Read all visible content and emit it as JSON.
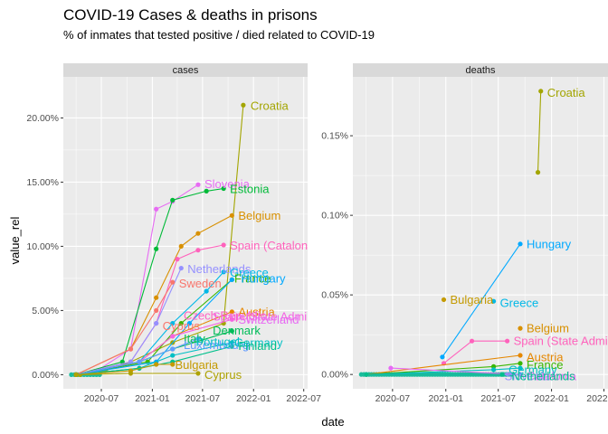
{
  "chart_data": {
    "type": "line",
    "title": "COVID-19 Cases & deaths in prisons",
    "subtitle": "% of inmates that tested positive / died related to COVID-19",
    "xlabel": "date",
    "ylabel": "value_rel",
    "x_ticks": [
      "2020-07",
      "2021-01",
      "2021-07",
      "2022-01",
      "2022-07"
    ],
    "x_range": [
      "2020-02-15",
      "2022-07-15"
    ],
    "grid": true,
    "legend": "none",
    "panels": [
      {
        "strip": "cases",
        "ylim": [
          -0.011,
          0.232
        ],
        "y_ticks": [
          0.0,
          0.05,
          0.1,
          0.15,
          0.2
        ],
        "y_tick_labels": [
          "0.00%",
          "5.00%",
          "10.00%",
          "15.00%",
          "20.00%"
        ],
        "series": [
          {
            "name": "Croatia",
            "color": "#A3A500",
            "points": [
              [
                "2020-04-15",
                0.0
              ],
              [
                "2020-07-15",
                0.003
              ],
              [
                "2020-10-15",
                0.01
              ],
              [
                "2021-03-15",
                0.025
              ],
              [
                "2021-09-15",
                0.04
              ],
              [
                "2021-11-25",
                0.21
              ]
            ]
          },
          {
            "name": "Slovenia",
            "color": "#E76BF3",
            "points": [
              [
                "2020-04-01",
                0.0
              ],
              [
                "2020-06-15",
                0.003
              ],
              [
                "2020-10-15",
                0.02
              ],
              [
                "2021-01-15",
                0.129
              ],
              [
                "2021-03-15",
                0.135
              ],
              [
                "2021-06-15",
                0.148
              ]
            ]
          },
          {
            "name": "Estonia",
            "color": "#00BA38",
            "points": [
              [
                "2020-04-01",
                0.0
              ],
              [
                "2020-09-15",
                0.01
              ],
              [
                "2021-01-15",
                0.098
              ],
              [
                "2021-03-15",
                0.136
              ],
              [
                "2021-07-15",
                0.143
              ],
              [
                "2021-09-15",
                0.145
              ]
            ]
          },
          {
            "name": "Belgium",
            "color": "#D89000",
            "points": [
              [
                "2020-04-01",
                0.0
              ],
              [
                "2020-10-15",
                0.02
              ],
              [
                "2021-01-15",
                0.06
              ],
              [
                "2021-04-15",
                0.1
              ],
              [
                "2021-06-15",
                0.11
              ],
              [
                "2021-10-15",
                0.124
              ]
            ]
          },
          {
            "name": "Spain (Catalonia)",
            "color": "#FF62BC",
            "points": [
              [
                "2020-04-01",
                0.0
              ],
              [
                "2020-10-15",
                0.01
              ],
              [
                "2021-01-15",
                0.04
              ],
              [
                "2021-04-01",
                0.09
              ],
              [
                "2021-06-15",
                0.097
              ],
              [
                "2021-09-15",
                0.101
              ]
            ]
          },
          {
            "name": "Netherlands",
            "color": "#9590FF",
            "points": [
              [
                "2020-04-01",
                0.0
              ],
              [
                "2020-10-15",
                0.01
              ],
              [
                "2021-01-15",
                0.04
              ],
              [
                "2021-04-15",
                0.083
              ]
            ]
          },
          {
            "name": "Greece",
            "color": "#00B8E7",
            "points": [
              [
                "2020-04-01",
                0.0
              ],
              [
                "2020-11-15",
                0.01
              ],
              [
                "2021-03-15",
                0.04
              ],
              [
                "2021-07-15",
                0.065
              ],
              [
                "2021-09-15",
                0.08
              ]
            ]
          },
          {
            "name": "France",
            "color": "#39B600",
            "points": [
              [
                "2020-04-01",
                0.0
              ],
              [
                "2020-12-15",
                0.01
              ],
              [
                "2021-04-15",
                0.04
              ],
              [
                "2021-10-15",
                0.074
              ]
            ]
          },
          {
            "name": "Hungary",
            "color": "#00A9FF",
            "points": [
              [
                "2020-04-01",
                0.0
              ],
              [
                "2021-01-15",
                0.01
              ],
              [
                "2021-05-15",
                0.04
              ],
              [
                "2021-10-15",
                0.074
              ]
            ]
          },
          {
            "name": "Sweden",
            "color": "#F8766D",
            "points": [
              [
                "2020-04-01",
                0.0
              ],
              [
                "2020-10-15",
                0.02
              ],
              [
                "2021-01-15",
                0.05
              ],
              [
                "2021-03-15",
                0.072
              ]
            ]
          },
          {
            "name": "Austria",
            "color": "#E58700",
            "points": [
              [
                "2020-04-01",
                0.0
              ],
              [
                "2020-11-15",
                0.01
              ],
              [
                "2021-03-15",
                0.03
              ],
              [
                "2021-10-15",
                0.049
              ]
            ]
          },
          {
            "name": "Switzerland",
            "color": "#F564E3",
            "points": [
              [
                "2020-04-01",
                0.0
              ],
              [
                "2020-11-15",
                0.01
              ],
              [
                "2021-03-15",
                0.03
              ],
              [
                "2021-10-15",
                0.043
              ]
            ]
          },
          {
            "name": "Denmark",
            "color": "#00BC59",
            "points": [
              [
                "2020-04-01",
                0.0
              ],
              [
                "2020-11-15",
                0.01
              ],
              [
                "2021-03-15",
                0.02
              ],
              [
                "2021-10-15",
                0.034
              ]
            ]
          },
          {
            "name": "Luxembourg",
            "color": "#619CFF",
            "points": [
              [
                "2020-04-01",
                0.0
              ],
              [
                "2020-11-15",
                0.01
              ],
              [
                "2021-03-15",
                0.02
              ],
              [
                "2021-06-15",
                0.028
              ]
            ]
          },
          {
            "name": "Germany",
            "color": "#00BFC4",
            "points": [
              [
                "2020-04-01",
                0.0
              ],
              [
                "2020-11-15",
                0.005
              ],
              [
                "2021-03-15",
                0.015
              ],
              [
                "2021-10-15",
                0.025
              ]
            ]
          },
          {
            "name": "Finland",
            "color": "#00C08B",
            "points": [
              [
                "2020-04-01",
                0.0
              ],
              [
                "2020-11-15",
                0.005
              ],
              [
                "2021-03-15",
                0.01
              ],
              [
                "2021-10-15",
                0.022
              ]
            ]
          },
          {
            "name": "Bulgaria",
            "color": "#C49A00",
            "points": [
              [
                "2020-04-01",
                0.0
              ],
              [
                "2020-10-15",
                0.003
              ],
              [
                "2021-01-15",
                0.008
              ],
              [
                "2021-03-15",
                0.008
              ]
            ]
          },
          {
            "name": "Cyprus",
            "color": "#AEA200",
            "points": [
              [
                "2020-04-01",
                0.0
              ],
              [
                "2020-10-15",
                0.001
              ],
              [
                "2021-06-15",
                0.001
              ]
            ]
          }
        ]
      },
      {
        "strip": "deaths",
        "ylim": [
          -9e-05,
          0.00187
        ],
        "y_ticks": [
          0.0,
          0.0005,
          0.001,
          0.0015
        ],
        "y_tick_labels": [
          "0.00%",
          "0.05%",
          "0.10%",
          "0.15%"
        ],
        "series": [
          {
            "name": "Croatia",
            "color": "#A3A500",
            "points": [
              [
                "2021-11-15",
                0.00127
              ],
              [
                "2021-11-25",
                0.00178
              ]
            ]
          },
          {
            "name": "Hungary",
            "color": "#00A9FF",
            "points": [
              [
                "2020-12-20",
                0.00011
              ],
              [
                "2021-09-15",
                0.00082
              ]
            ]
          },
          {
            "name": "Bulgaria",
            "color": "#C49A00",
            "points": [
              [
                "2020-12-25",
                0.00047
              ]
            ]
          },
          {
            "name": "Greece",
            "color": "#00B8E7",
            "points": [
              [
                "2021-06-15",
                0.00046
              ]
            ]
          },
          {
            "name": "Belgium",
            "color": "#D89000",
            "points": [
              [
                "2021-09-15",
                0.00029
              ]
            ]
          },
          {
            "name": "Spain (State Admin.)",
            "color": "#FF62BC",
            "points": [
              [
                "2020-12-25",
                7e-05
              ],
              [
                "2021-04-01",
                0.00021
              ],
              [
                "2021-08-01",
                0.00021
              ]
            ]
          },
          {
            "name": "Austria",
            "color": "#E58700",
            "points": [
              [
                "2020-04-01",
                0.0
              ],
              [
                "2021-09-15",
                0.00012
              ]
            ]
          },
          {
            "name": "France",
            "color": "#39B600",
            "points": [
              [
                "2020-04-01",
                0.0
              ],
              [
                "2021-06-15",
                5e-05
              ],
              [
                "2021-09-15",
                7e-05
              ]
            ]
          },
          {
            "name": "Germany",
            "color": "#00BFC4",
            "points": [
              [
                "2020-04-01",
                0.0
              ],
              [
                "2021-06-15",
                3e-05
              ],
              [
                "2021-09-15",
                4e-05
              ]
            ]
          },
          {
            "name": "Catalonia",
            "color": "#E76BF3",
            "points": [
              [
                "2020-06-25",
                4e-05
              ],
              [
                "2021-09-15",
                0.0
              ]
            ]
          },
          {
            "name": "Slovenia",
            "color": "#9590FF",
            "points": [
              [
                "2020-04-01",
                0.0
              ],
              [
                "2021-09-15",
                0.0
              ]
            ]
          },
          {
            "name": "Netherlands",
            "color": "#00C08B",
            "points": [
              [
                "2020-04-01",
                0.0
              ],
              [
                "2021-07-15",
                0.0
              ]
            ]
          }
        ]
      }
    ],
    "labels": {
      "cases": [
        {
          "text": "Croatia",
          "color": "#A3A500",
          "x": "2021-11-28",
          "y": 0.2095
        },
        {
          "text": "Slovenia",
          "color": "#E76BF3",
          "x": "2021-06-15",
          "y": 0.1485
        },
        {
          "text": "Estonia",
          "color": "#00BA38",
          "x": "2021-09-15",
          "y": 0.1445
        },
        {
          "text": "Belgium",
          "color": "#D89000",
          "x": "2021-10-15",
          "y": 0.1238
        },
        {
          "text": "Spain (Catalonia)",
          "color": "#FF62BC",
          "x": "2021-09-15",
          "y": 0.1005
        },
        {
          "text": "Netherlands",
          "color": "#9590FF",
          "x": "2021-04-15",
          "y": 0.0825
        },
        {
          "text": "Greece",
          "color": "#00B8E7",
          "x": "2021-09-15",
          "y": 0.0795
        },
        {
          "text": "France",
          "color": "#39B600",
          "x": "2021-10-01",
          "y": 0.075
        },
        {
          "text": "Hungary",
          "color": "#00A9FF",
          "x": "2021-10-25",
          "y": 0.0748
        },
        {
          "text": "Sweden",
          "color": "#F8766D",
          "x": "2021-03-15",
          "y": 0.0712
        },
        {
          "text": "Austria",
          "color": "#E58700",
          "x": "2021-10-15",
          "y": 0.049
        },
        {
          "text": "Czech Republic",
          "color": "#FF61C3",
          "x": "2021-04-01",
          "y": 0.046
        },
        {
          "text": "Spain (State Admin.)",
          "color": "#F564E3",
          "x": "2021-07-15",
          "y": 0.0455
        },
        {
          "text": "Switzerland",
          "color": "#E76BF3",
          "x": "2021-10-15",
          "y": 0.043
        },
        {
          "text": "Cyprus",
          "color": "#F8766D",
          "x": "2021-01-15",
          "y": 0.038
        },
        {
          "text": "Denmark",
          "color": "#00BC59",
          "x": "2021-07-15",
          "y": 0.0345
        },
        {
          "text": "Italy",
          "color": "#00BD5C",
          "x": "2021-04-01",
          "y": 0.028
        },
        {
          "text": "Luxembourg",
          "color": "#619CFF",
          "x": "2021-04-01",
          "y": 0.023
        },
        {
          "text": "Portugal",
          "color": "#00BFC4",
          "x": "2021-05-15",
          "y": 0.0255
        },
        {
          "text": "Germany",
          "color": "#00BFC4",
          "x": "2021-10-01",
          "y": 0.025
        },
        {
          "text": "Finland",
          "color": "#00C08B",
          "x": "2021-10-15",
          "y": 0.0225
        },
        {
          "text": "Bulgaria",
          "color": "#C49A00",
          "x": "2021-03-01",
          "y": 0.0075
        },
        {
          "text": "Cyprus",
          "color": "#AEA200",
          "x": "2021-06-15",
          "y": 0.0
        }
      ],
      "deaths": [
        {
          "text": "Croatia",
          "color": "#A3A500",
          "x": "2021-11-25",
          "y": 0.00177
        },
        {
          "text": "Hungary",
          "color": "#00A9FF",
          "x": "2021-09-15",
          "y": 0.00082
        },
        {
          "text": "Bulgaria",
          "color": "#C49A00",
          "x": "2020-12-25",
          "y": 0.00047
        },
        {
          "text": "Greece",
          "color": "#00B8E7",
          "x": "2021-06-15",
          "y": 0.00045
        },
        {
          "text": "Belgium",
          "color": "#D89000",
          "x": "2021-09-15",
          "y": 0.00029
        },
        {
          "text": "Spain (State Admin.)",
          "color": "#FF62BC",
          "x": "2021-08-01",
          "y": 0.00021
        },
        {
          "text": "Austria",
          "color": "#E58700",
          "x": "2021-09-15",
          "y": 0.00011
        },
        {
          "text": "France",
          "color": "#39B600",
          "x": "2021-09-15",
          "y": 6e-05
        },
        {
          "text": "Germany",
          "color": "#00BFC4",
          "x": "2021-07-15",
          "y": 3e-05
        },
        {
          "text": "Catalonia",
          "color": "#E76BF3",
          "x": "2021-09-15",
          "y": -1e-05
        },
        {
          "text": "Slovenia",
          "color": "#9590FF",
          "x": "2021-07-01",
          "y": -1e-05
        },
        {
          "text": "Netherlands",
          "color": "#00C08B",
          "x": "2021-07-25",
          "y": -1e-05
        }
      ]
    },
    "baseline_points": {
      "cases": {
        "color": "#1ABC9C",
        "from": "2020-03-15",
        "to": "2020-06-25",
        "count": 10
      },
      "deaths": {
        "color": "#1ABC9C",
        "from": "2020-03-15",
        "to": "2021-08-15",
        "count": 60
      }
    }
  }
}
